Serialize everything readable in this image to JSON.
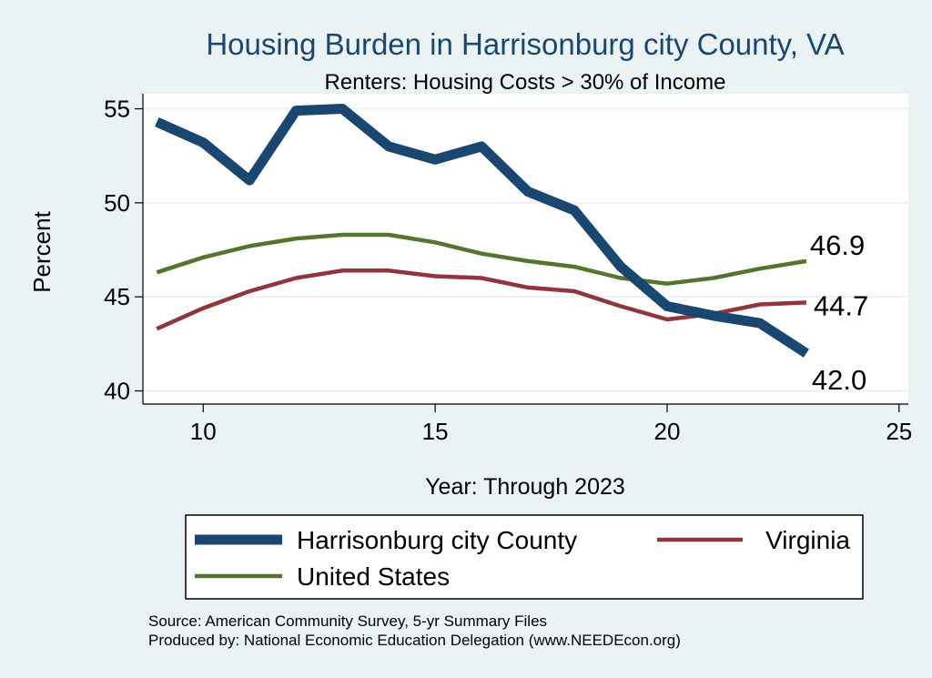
{
  "chart_data": {
    "type": "line",
    "title": "Housing Burden in Harrisonburg city County, VA",
    "subtitle": "Renters: Housing Costs > 30% of Income",
    "xlabel": "Year: Through 2023",
    "ylabel": "Percent",
    "xlim": [
      8.7,
      25.2
    ],
    "ylim": [
      39.3,
      55.8
    ],
    "xticks": [
      10,
      15,
      20,
      25
    ],
    "yticks": [
      40,
      45,
      50,
      55
    ],
    "grid": true,
    "legend_position": "bottom",
    "x": [
      9,
      10,
      11,
      12,
      13,
      14,
      15,
      16,
      17,
      18,
      19,
      20,
      21,
      22,
      23
    ],
    "series": [
      {
        "name": "Harrisonburg city County",
        "color": "#1a476f",
        "values": [
          54.3,
          53.2,
          51.2,
          54.9,
          55.0,
          53.0,
          52.3,
          53.0,
          50.6,
          49.6,
          46.6,
          44.5,
          44.0,
          43.6,
          42.0
        ],
        "end_label": "42.0"
      },
      {
        "name": "Virginia",
        "color": "#90353b",
        "values": [
          43.3,
          44.4,
          45.3,
          46.0,
          46.4,
          46.4,
          46.1,
          46.0,
          45.5,
          45.3,
          44.5,
          43.8,
          44.1,
          44.6,
          44.7
        ],
        "end_label": "44.7"
      },
      {
        "name": "United States",
        "color": "#55752f",
        "values": [
          46.3,
          47.1,
          47.7,
          48.1,
          48.3,
          48.3,
          47.9,
          47.3,
          46.9,
          46.6,
          46.0,
          45.7,
          46.0,
          46.5,
          46.9
        ],
        "end_label": "46.9"
      }
    ],
    "source": "Source: American Community Survey, 5-yr Summary Files",
    "produced_by": "Produced by: National Economic Education Delegation (www.NEEDEcon.org)"
  }
}
